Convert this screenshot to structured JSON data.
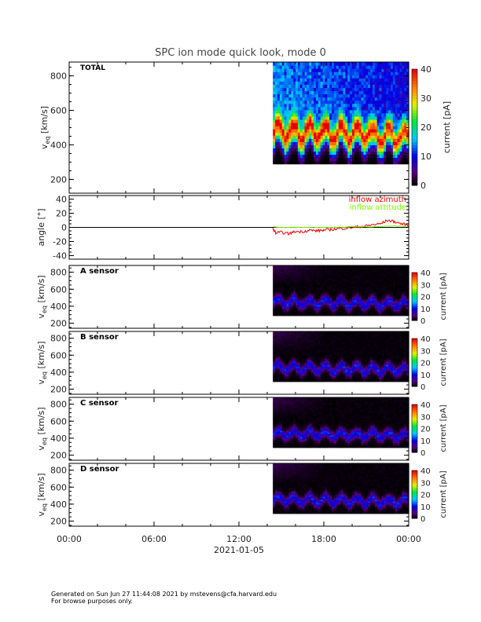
{
  "title": "SPC ion mode quick look, mode 0",
  "footer": {
    "line1": "Generated on Sun Jun 27 11:44:08 2021 by mstevens@cfa.harvard.edu",
    "line2": "For browse purposes only."
  },
  "chart_data": [
    {
      "type": "heatmap",
      "name": "total",
      "label": "TOTAL",
      "ylabel": "v_eq [km/s]",
      "ylim": [
        120,
        880
      ],
      "yticks": [
        200,
        400,
        600,
        800
      ],
      "colorbar": {
        "label": "current [pA]",
        "range": [
          0,
          40
        ],
        "ticks": [
          0,
          10,
          20,
          30,
          40
        ]
      },
      "data_start_hour": 14.4,
      "data_vrange": [
        290,
        880
      ],
      "peak_v": 470,
      "peak_current": 35,
      "scale": 1.0
    },
    {
      "type": "line",
      "name": "angle",
      "ylabel": "angle [°]",
      "ylim": [
        -45,
        45
      ],
      "yticks": [
        -40,
        -20,
        0,
        20,
        40
      ],
      "series": [
        {
          "name": "inflow azimuth",
          "color": "#ff0000",
          "x": [
            14.4,
            14.6,
            15,
            15.5,
            16,
            16.5,
            17,
            17.5,
            18,
            18.5,
            19,
            19.5,
            20,
            20.5,
            21,
            21.5,
            22,
            22.5,
            23,
            23.5,
            24
          ],
          "y": [
            -2,
            -8,
            -7,
            -9,
            -6,
            -6,
            -4,
            -5,
            -4,
            -3,
            -2,
            -1,
            0,
            1,
            2,
            4,
            5,
            10,
            8,
            5,
            3
          ]
        },
        {
          "name": "inflow attitude",
          "color": "#7fff00",
          "x": [
            14.4,
            15,
            16,
            17,
            18,
            19,
            20,
            21,
            22,
            23,
            24
          ],
          "y": [
            1,
            0,
            0,
            0,
            0,
            0,
            1,
            1,
            1,
            2,
            1
          ]
        }
      ]
    },
    {
      "type": "heatmap",
      "name": "a-sensor",
      "label": "A sensor",
      "ylabel": "v_eq [km/s]",
      "ylim": [
        140,
        880
      ],
      "yticks": [
        200,
        400,
        600,
        800
      ],
      "colorbar": {
        "label": "current [pA]",
        "range": [
          0,
          40
        ],
        "ticks": [
          0,
          10,
          20,
          30,
          40
        ]
      },
      "data_start_hour": 14.4,
      "data_vrange": [
        290,
        880
      ],
      "peak_v": 460,
      "peak_current": 10,
      "scale": 0.3
    },
    {
      "type": "heatmap",
      "name": "b-sensor",
      "label": "B sensor",
      "ylabel": "v_eq [km/s]",
      "ylim": [
        140,
        880
      ],
      "yticks": [
        200,
        400,
        600,
        800
      ],
      "colorbar": {
        "label": "current [pA]",
        "range": [
          0,
          40
        ],
        "ticks": [
          0,
          10,
          20,
          30,
          40
        ]
      },
      "data_start_hour": 14.4,
      "data_vrange": [
        290,
        880
      ],
      "peak_v": 460,
      "peak_current": 10,
      "scale": 0.3
    },
    {
      "type": "heatmap",
      "name": "c-sensor",
      "label": "C sensor",
      "ylabel": "v_eq [km/s]",
      "ylim": [
        140,
        880
      ],
      "yticks": [
        200,
        400,
        600,
        800
      ],
      "colorbar": {
        "label": "current [pA]",
        "range": [
          0,
          40
        ],
        "ticks": [
          0,
          10,
          20,
          30,
          40
        ]
      },
      "data_start_hour": 14.4,
      "data_vrange": [
        290,
        880
      ],
      "peak_v": 460,
      "peak_current": 10,
      "scale": 0.3
    },
    {
      "type": "heatmap",
      "name": "d-sensor",
      "label": "D sensor",
      "ylabel": "v_eq [km/s]",
      "ylim": [
        140,
        880
      ],
      "yticks": [
        200,
        400,
        600,
        800
      ],
      "colorbar": {
        "label": "current [pA]",
        "range": [
          0,
          40
        ],
        "ticks": [
          0,
          10,
          20,
          30,
          40
        ]
      },
      "data_start_hour": 14.4,
      "data_vrange": [
        290,
        880
      ],
      "peak_v": 460,
      "peak_current": 10,
      "scale": 0.3
    }
  ],
  "xaxis": {
    "ticks": [
      "00:00",
      "06:00",
      "12:00",
      "18:00",
      "00:00"
    ],
    "date": "2021-01-05",
    "range_hours": [
      0,
      24
    ]
  }
}
